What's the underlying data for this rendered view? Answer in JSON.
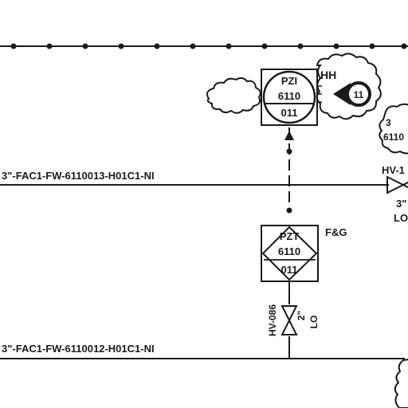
{
  "lines": {
    "upper_label": "3\"-FAC1-FW-6110013-H01C1-NI",
    "lower_label": "3\"-FAC1-FW-6110012-H01C1-NI"
  },
  "indicator": {
    "tag_top": "PZI",
    "tag_mid": "6110",
    "tag_bot": "011",
    "alarm": "HH",
    "callout": "11"
  },
  "transmitter": {
    "tag_top": "PZT",
    "tag_mid": "6110",
    "tag_bot": "011",
    "service": "F&G"
  },
  "valve_small": {
    "tag": "HV-086",
    "size": "2\"",
    "state": "LO"
  },
  "valve_right": {
    "tag": "HV-1",
    "size": "3\"",
    "state": "LO"
  },
  "offpage_right": {
    "line1": "3",
    "line2": "6110"
  }
}
